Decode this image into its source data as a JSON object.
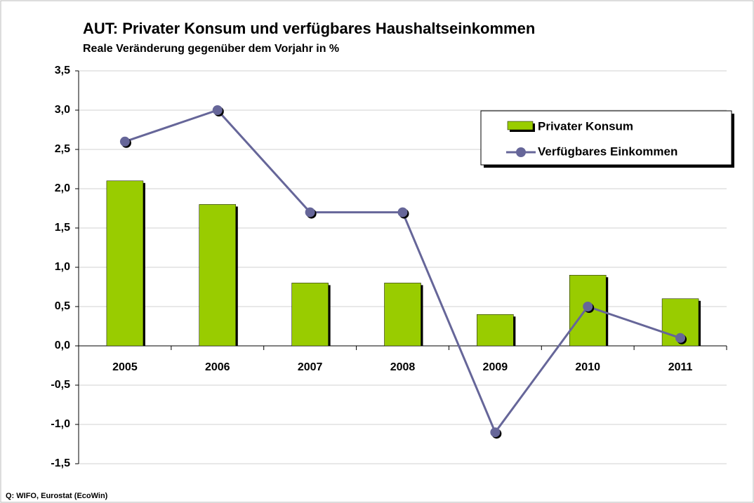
{
  "chart_data": {
    "type": "bar",
    "title": "AUT: Privater Konsum und verfügbares Haushaltseinkommen",
    "subtitle": "Reale Veränderung gegenüber dem Vorjahr in %",
    "source": "Q: WIFO, Eurostat (EcoWin)",
    "categories": [
      "2005",
      "2006",
      "2007",
      "2008",
      "2009",
      "2010",
      "2011"
    ],
    "series": [
      {
        "name": "Privater Konsum",
        "type": "bar",
        "color": "#99cc00",
        "values": [
          2.1,
          1.8,
          0.8,
          0.8,
          0.4,
          0.9,
          0.6
        ]
      },
      {
        "name": "Verfügbares Einkommen",
        "type": "line",
        "color": "#666699",
        "values": [
          2.6,
          3.0,
          1.7,
          1.7,
          -1.1,
          0.5,
          0.1
        ]
      }
    ],
    "ylim": [
      -1.5,
      3.5
    ],
    "yticks": [
      {
        "value": -1.5,
        "label": "-1,5"
      },
      {
        "value": -1.0,
        "label": "-1,0"
      },
      {
        "value": -0.5,
        "label": "-0,5"
      },
      {
        "value": 0,
        "label": "0,0"
      },
      {
        "value": 0.5,
        "label": "0,5"
      },
      {
        "value": 1.0,
        "label": "1,0"
      },
      {
        "value": 1.5,
        "label": "1,5"
      },
      {
        "value": 2.0,
        "label": "2,0"
      },
      {
        "value": 2.5,
        "label": "2,5"
      },
      {
        "value": 3.0,
        "label": "3,0"
      },
      {
        "value": 3.5,
        "label": "3,5"
      }
    ],
    "grid": true,
    "legend": "top-right"
  }
}
